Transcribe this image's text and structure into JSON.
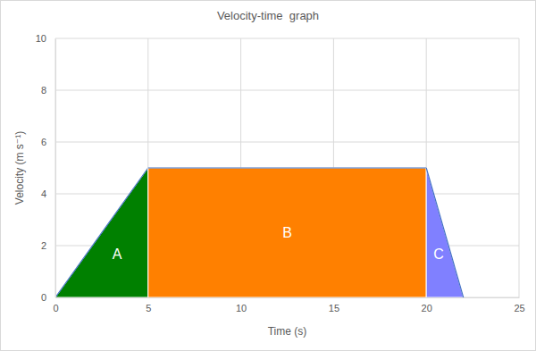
{
  "chart_data": {
    "type": "area",
    "title": "Velocity-time  graph",
    "x_label": "Time (s)",
    "y_label": "Velocity (m s⁻¹)",
    "xlim": [
      0,
      25
    ],
    "xticks": [
      0,
      5,
      10,
      15,
      20,
      25
    ],
    "ylim": [
      0,
      10
    ],
    "yticks": [
      0,
      2,
      4,
      6,
      8,
      10
    ],
    "grid": true,
    "series": [
      {
        "name": "A",
        "color": "#008000",
        "x": [
          0,
          5
        ],
        "values": [
          0,
          5
        ]
      },
      {
        "name": "B",
        "color": "#ff8000",
        "x": [
          5,
          20
        ],
        "values": [
          5,
          5
        ]
      },
      {
        "name": "C",
        "color": "#8080ff",
        "x": [
          20,
          22
        ],
        "values": [
          5,
          0
        ]
      }
    ]
  }
}
